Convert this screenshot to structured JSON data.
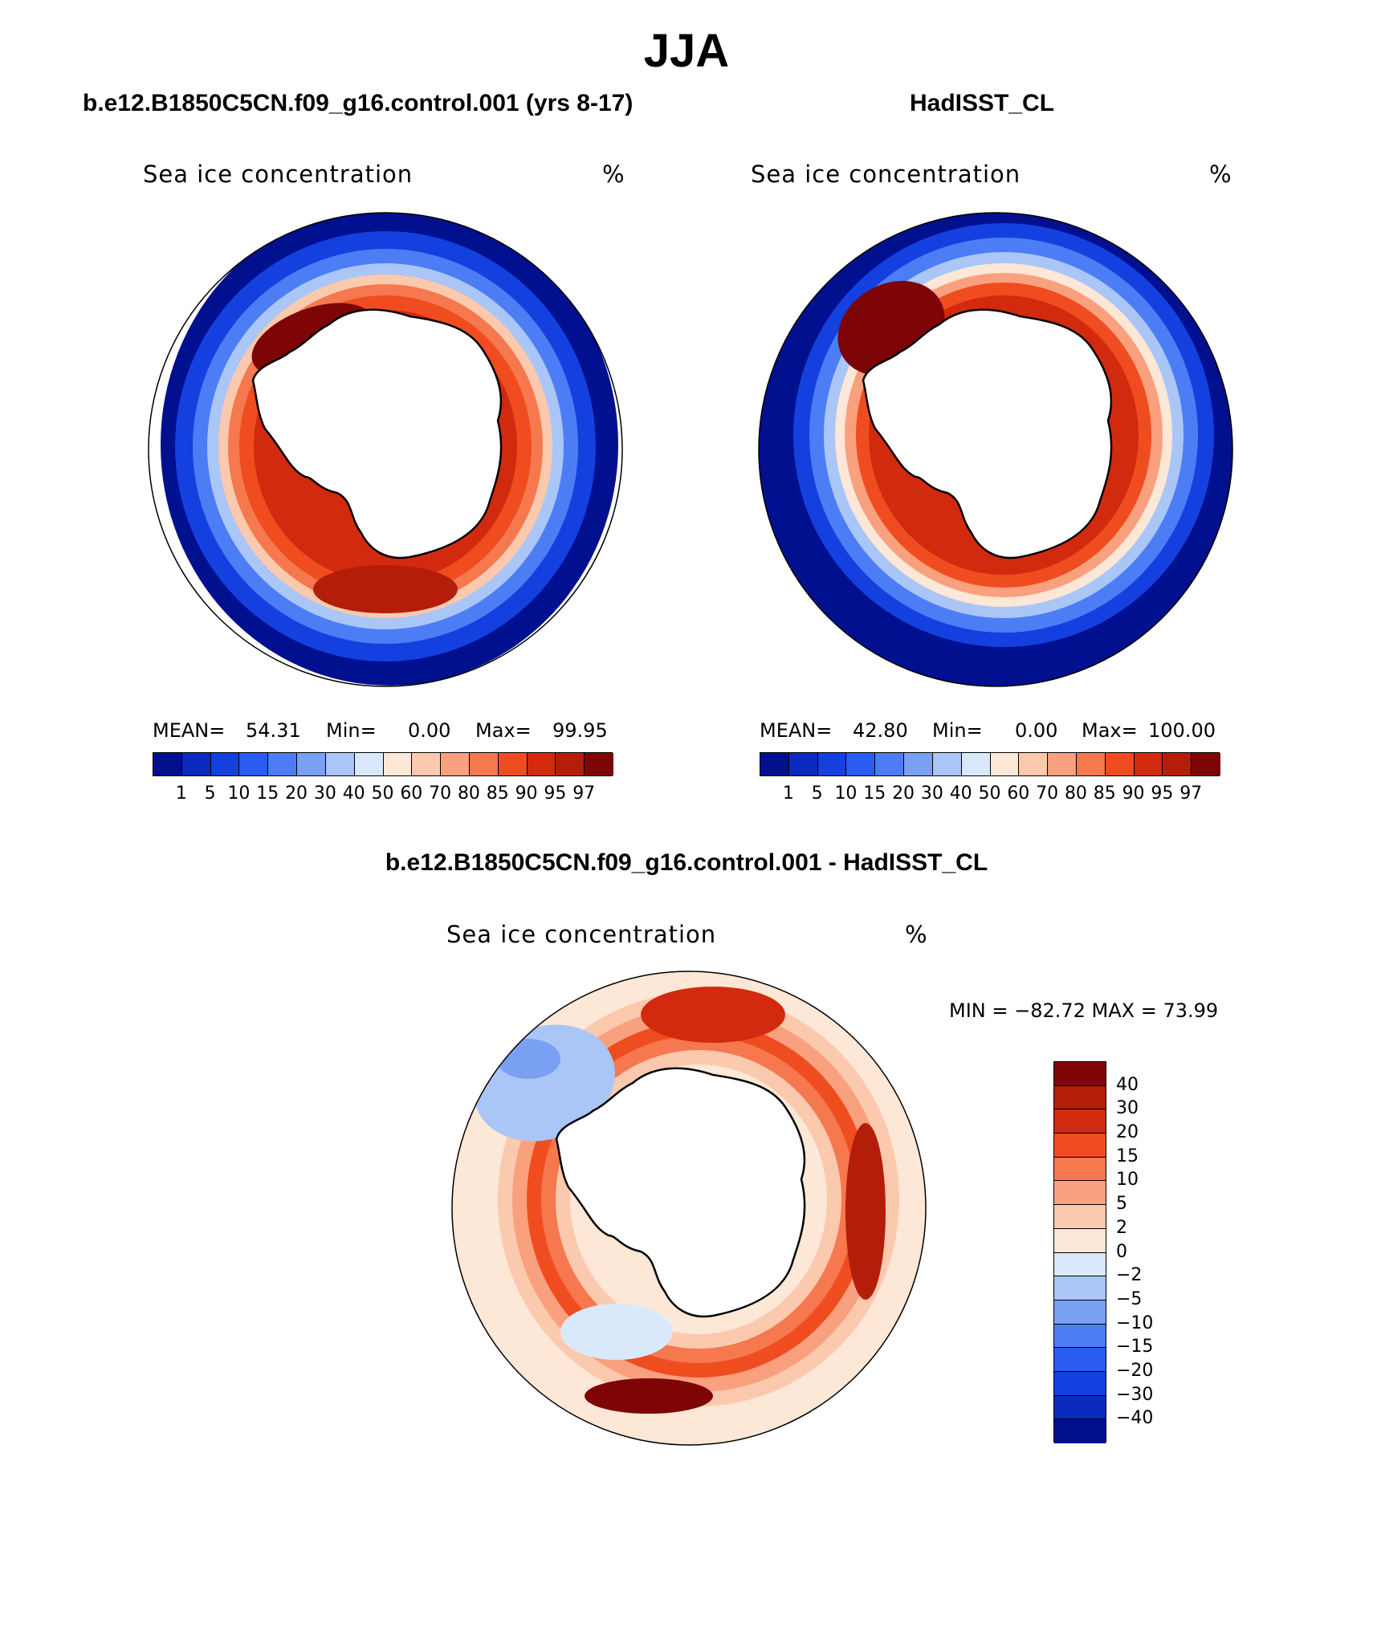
{
  "figure": {
    "season": "JJA",
    "panels": [
      {
        "case": "b.e12.B1850C5CN.f09_g16.control.001 (yrs 8-17)",
        "variable": "Sea ice concentration",
        "units": "%",
        "stats": {
          "mean_label": "MEAN=",
          "mean": "54.31",
          "min_label": "Min=",
          "min": "0.00",
          "max_label": "Max=",
          "max": "99.95"
        }
      },
      {
        "case": "HadISST_CL",
        "variable": "Sea ice concentration",
        "units": "%",
        "stats": {
          "mean_label": "MEAN=",
          "mean": "42.80",
          "min_label": "Min=",
          "min": "0.00",
          "max_label": "Max=",
          "max": "100.00"
        }
      }
    ],
    "difference": {
      "title": "b.e12.B1850C5CN.f09_g16.control.001 - HadISST_CL",
      "variable": "Sea ice concentration",
      "units": "%",
      "minmax": "MIN = −82.72 MAX =   73.99"
    },
    "colorbar_abs": {
      "levels": [
        "1",
        "5",
        "10",
        "15",
        "20",
        "30",
        "40",
        "50",
        "60",
        "70",
        "80",
        "85",
        "90",
        "95",
        "97"
      ],
      "colors": [
        "#00108f",
        "#0a2bbe",
        "#1440e0",
        "#2a5cf2",
        "#4d7df4",
        "#7aa0f4",
        "#a9c6f7",
        "#d9e9fb",
        "#fde7d6",
        "#fbc9ad",
        "#f9a07e",
        "#f5784f",
        "#ef4d20",
        "#d22a0e",
        "#b31d0a",
        "#7d0505"
      ]
    },
    "colorbar_diff": {
      "levels": [
        "40",
        "30",
        "20",
        "15",
        "10",
        "5",
        "2",
        "0",
        "−2",
        "−5",
        "−10",
        "−15",
        "−20",
        "−30",
        "−40"
      ],
      "colors": [
        "#7d0505",
        "#b31d0a",
        "#d22a0e",
        "#ef4d20",
        "#f5784f",
        "#f9a07e",
        "#fbc9ad",
        "#fde7d6",
        "#d9e9fb",
        "#a9c6f7",
        "#7aa0f4",
        "#4d7df4",
        "#2a5cf2",
        "#1440e0",
        "#0a2bbe",
        "#00108f"
      ]
    }
  }
}
